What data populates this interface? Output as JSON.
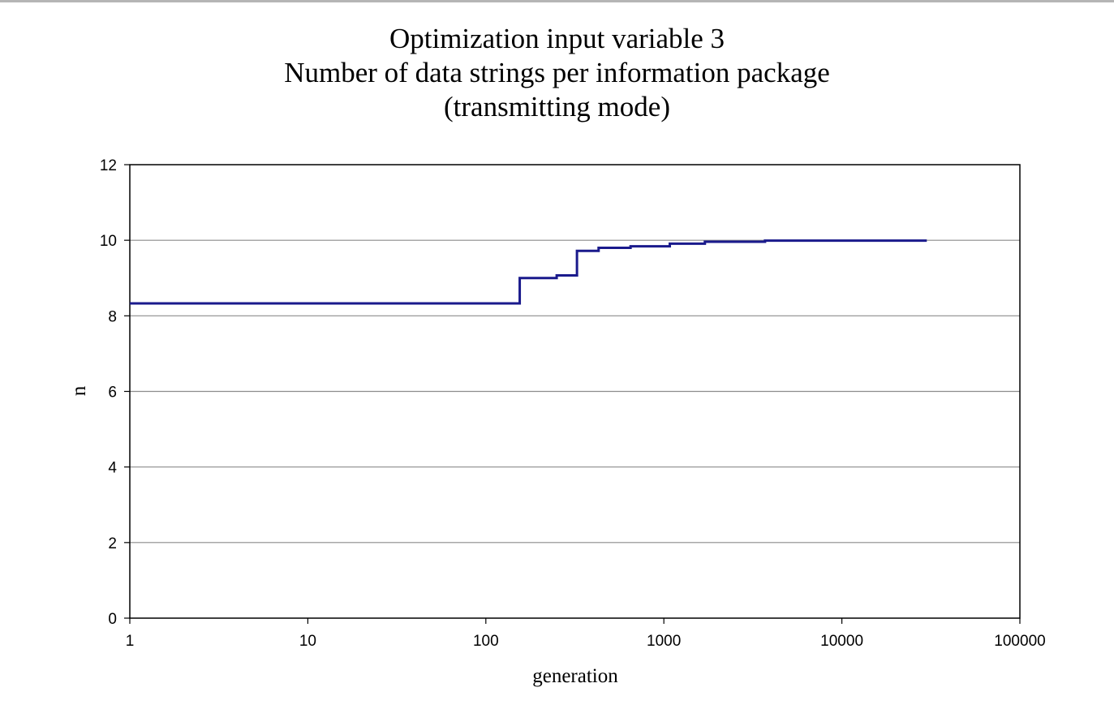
{
  "chart_data": {
    "type": "line",
    "title_lines": [
      "Optimization input variable 3",
      "Number of data strings per information package",
      "(transmitting mode)"
    ],
    "xlabel": "generation",
    "ylabel": "n",
    "x_scale": "log",
    "xlim": [
      1,
      100000
    ],
    "ylim": [
      0,
      12
    ],
    "x_ticks": [
      1,
      10,
      100,
      1000,
      10000,
      100000
    ],
    "x_tick_labels": [
      "1",
      "10",
      "100",
      "1000",
      "10000",
      "100000"
    ],
    "y_ticks": [
      0,
      2,
      4,
      6,
      8,
      10,
      12
    ],
    "y_tick_labels": [
      "0",
      "2",
      "4",
      "6",
      "8",
      "10",
      "12"
    ],
    "grid": "horizontal",
    "legend": "none",
    "step": true,
    "series": [
      {
        "color": "#1a1a8c",
        "points": [
          {
            "x": 1,
            "y": 8.33
          },
          {
            "x": 155,
            "y": 9.0
          },
          {
            "x": 250,
            "y": 9.07
          },
          {
            "x": 325,
            "y": 9.72
          },
          {
            "x": 430,
            "y": 9.8
          },
          {
            "x": 650,
            "y": 9.84
          },
          {
            "x": 1080,
            "y": 9.91
          },
          {
            "x": 1700,
            "y": 9.96
          },
          {
            "x": 3700,
            "y": 9.99
          },
          {
            "x": 30000,
            "y": 9.99
          }
        ]
      }
    ]
  }
}
